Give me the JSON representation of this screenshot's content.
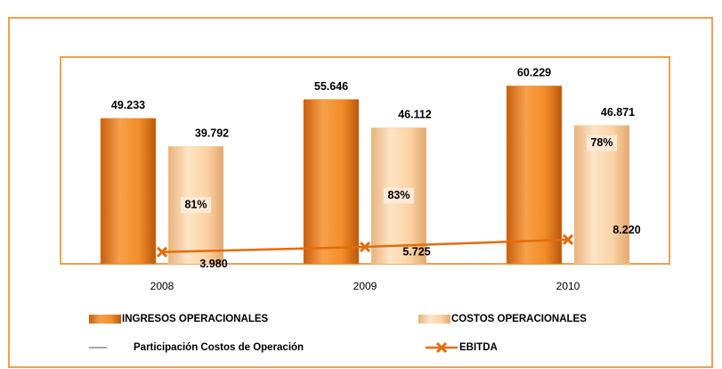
{
  "chart_data": {
    "type": "bar",
    "categories": [
      "2008",
      "2009",
      "2010"
    ],
    "ylim": [
      0,
      70
    ],
    "series": [
      {
        "name": "INGRESOS OPERACIONALES",
        "color": "#f28c28",
        "values": [
          49.233,
          55.646,
          60.229
        ],
        "value_labels": [
          "49.233",
          "55.646",
          "60.229"
        ]
      },
      {
        "name": "COSTOS OPERACIONALES",
        "color": "#fbd3a4",
        "values": [
          39.792,
          46.112,
          46.871
        ],
        "value_labels": [
          "39.792",
          "46.112",
          "46.871"
        ]
      },
      {
        "name": "Participación Costos de Operación",
        "color": "#a6a6a6",
        "values": [
          81,
          83,
          78
        ],
        "value_labels": [
          "81%",
          "83%",
          "78%"
        ]
      },
      {
        "name": "EBITDA",
        "type": "line",
        "color": "#e46c0a",
        "values": [
          3.98,
          5.725,
          8.22
        ],
        "value_labels": [
          "3.980",
          "5.725",
          "8.220"
        ]
      }
    ]
  }
}
